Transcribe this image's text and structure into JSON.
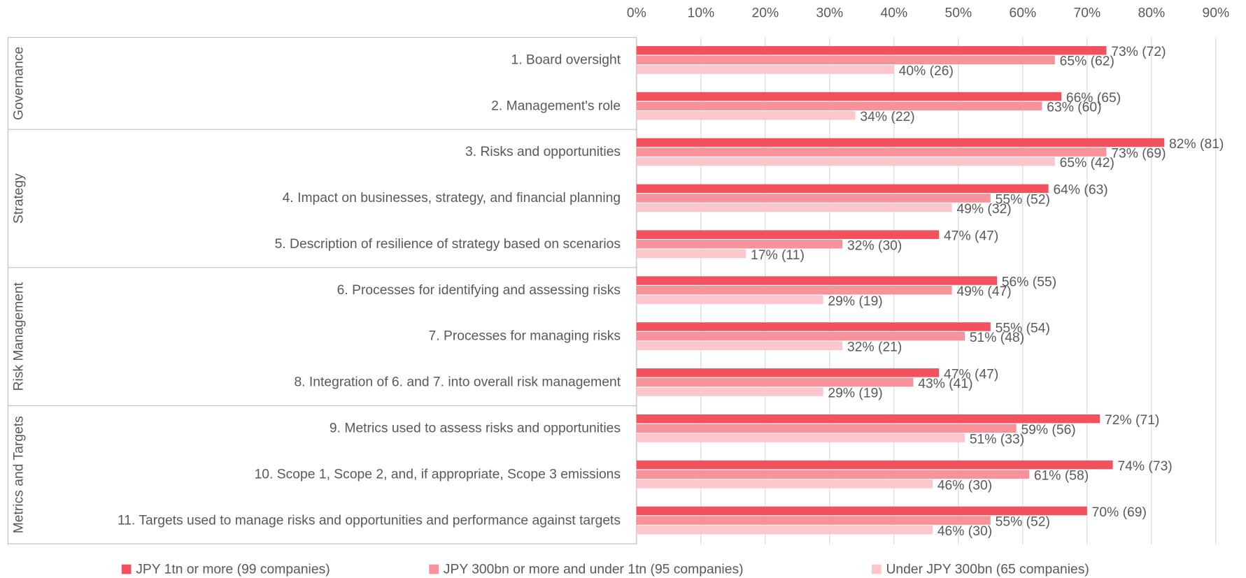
{
  "chart_data": {
    "type": "bar",
    "orientation": "horizontal",
    "groups": [
      {
        "name": "Governance",
        "categories": [
          "1. Board oversight",
          "2. Management's role"
        ]
      },
      {
        "name": "Strategy",
        "categories": [
          "3. Risks and opportunities",
          "4. Impact on businesses, strategy, and financial planning",
          "5. Description of resilience of strategy based on scenarios"
        ]
      },
      {
        "name": "Risk Management",
        "categories": [
          "6. Processes for identifying and assessing risks",
          "7. Processes for managing risks",
          "8. Integration of 6. and 7. into overall risk management"
        ]
      },
      {
        "name": "Metrics and Targets",
        "categories": [
          "9. Metrics used to assess risks and opportunities",
          "10. Scope 1, Scope 2, and, if appropriate, Scope 3 emissions",
          "11. Targets used to manage risks and opportunities and performance against targets"
        ]
      }
    ],
    "series": [
      {
        "name": "JPY 1tn or more (99 companies)",
        "color": "#f4515f",
        "values": [
          73,
          66,
          82,
          64,
          47,
          56,
          55,
          47,
          72,
          74,
          70
        ],
        "value_labels": [
          "73% (72)",
          "66% (65)",
          "82% (81)",
          "64% (63)",
          "47% (47)",
          "56% (55)",
          "55% (54)",
          "47% (47)",
          "72% (71)",
          "74% (73)",
          "70% (69)"
        ]
      },
      {
        "name": "JPY 300bn or more and under 1tn (95 companies)",
        "color": "#f8929a",
        "values": [
          65,
          63,
          73,
          55,
          32,
          49,
          51,
          43,
          59,
          61,
          55
        ],
        "value_labels": [
          "65% (62)",
          "63% (60)",
          "73% (69)",
          "55% (52)",
          "32% (30)",
          "49% (47)",
          "51% (48)",
          "43% (41)",
          "59% (56)",
          "61% (58)",
          "55% (52)"
        ]
      },
      {
        "name": "Under JPY 300bn (65 companies)",
        "color": "#fbc6cc",
        "values": [
          40,
          34,
          65,
          49,
          17,
          29,
          32,
          29,
          51,
          46,
          46
        ],
        "value_labels": [
          "40% (26)",
          "34% (22)",
          "65% (42)",
          "49% (32)",
          "17% (11)",
          "29% (19)",
          "32% (21)",
          "29% (19)",
          "51% (33)",
          "46% (30)",
          "46% (30)"
        ]
      }
    ],
    "xlim": [
      0,
      90
    ],
    "xticks": [
      {
        "value": 0,
        "label": "0%"
      },
      {
        "value": 10,
        "label": "10%"
      },
      {
        "value": 20,
        "label": "20%"
      },
      {
        "value": 30,
        "label": "30%"
      },
      {
        "value": 40,
        "label": "40%"
      },
      {
        "value": 50,
        "label": "50%"
      },
      {
        "value": 60,
        "label": "60%"
      },
      {
        "value": 70,
        "label": "70%"
      },
      {
        "value": 80,
        "label": "80%"
      },
      {
        "value": 90,
        "label": "90%"
      }
    ],
    "grid": true,
    "legend": "bottom"
  }
}
